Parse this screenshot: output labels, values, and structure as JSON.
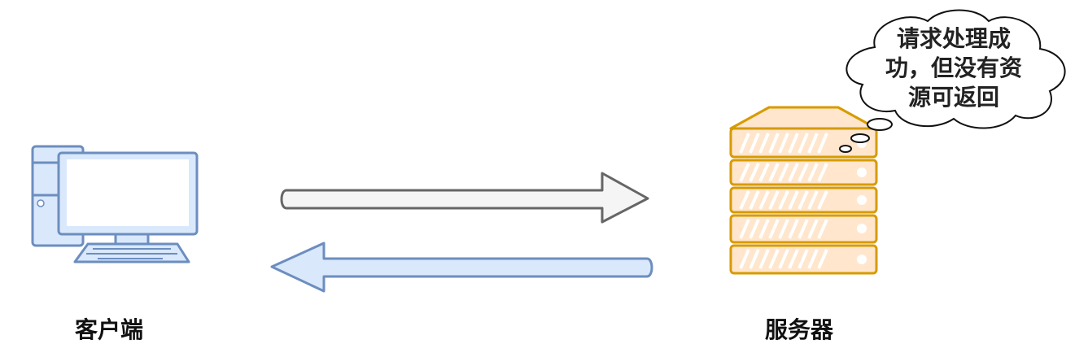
{
  "client": {
    "label": "客户端"
  },
  "server": {
    "label": "服务器"
  },
  "bubble": {
    "lines": [
      "请求处理成",
      "功，但没有资",
      "源可返回"
    ]
  },
  "colors": {
    "client_stroke": "#6c8ebf",
    "client_fill": "#dae8fc",
    "request_arrow_fill": "#f5f5f5",
    "request_arrow_stroke": "#666666",
    "response_arrow_fill": "#dae8fc",
    "response_arrow_stroke": "#6c8ebf",
    "server_fill": "#ffe6cc",
    "server_stroke": "#d79b00"
  }
}
